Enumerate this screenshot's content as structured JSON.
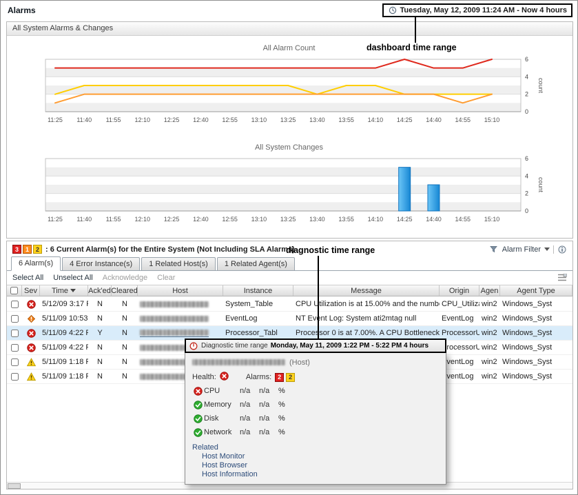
{
  "header": {
    "title": "Alarms",
    "time_range": "Tuesday, May 12, 2009 11:24 AM - Now 4 hours"
  },
  "annotations": {
    "dashboard": "dashboard time range",
    "diagnostic": "diagnostic time range"
  },
  "alarms_panel": {
    "title": "All System Alarms & Changes"
  },
  "chart_data": [
    {
      "type": "line",
      "title": "All Alarm Count",
      "xlabel": "",
      "ylabel": "count",
      "ylim": [
        0,
        6
      ],
      "yticks": [
        0,
        2,
        4,
        6
      ],
      "y_axis_side": "right",
      "grid": true,
      "categories": [
        "11:25",
        "11:40",
        "11:55",
        "12:10",
        "12:25",
        "12:40",
        "12:55",
        "13:10",
        "13:25",
        "13:40",
        "13:55",
        "14:10",
        "14:25",
        "14:40",
        "14:55",
        "15:10"
      ],
      "series": [
        {
          "name": "fatal",
          "color": "#df291d",
          "values": [
            5,
            5,
            5,
            5,
            5,
            5,
            5,
            5,
            5,
            5,
            5,
            5,
            6,
            5,
            5,
            6
          ]
        },
        {
          "name": "warning",
          "color": "#ffce00",
          "values": [
            2,
            3,
            3,
            3,
            3,
            3,
            3,
            3,
            3,
            2,
            3,
            3,
            2,
            2,
            2,
            2
          ]
        },
        {
          "name": "critical",
          "color": "#ff9d33",
          "values": [
            1,
            2,
            2,
            2,
            2,
            2,
            2,
            2,
            2,
            2,
            2,
            2,
            2,
            2,
            1,
            2
          ]
        }
      ]
    },
    {
      "type": "bar",
      "title": "All System Changes",
      "xlabel": "",
      "ylabel": "count",
      "ylim": [
        0,
        6
      ],
      "yticks": [
        0,
        2,
        4,
        6
      ],
      "y_axis_side": "right",
      "grid": true,
      "bar_color": "#2aa6ef",
      "categories": [
        "11:25",
        "11:40",
        "11:55",
        "12:10",
        "12:25",
        "12:40",
        "12:55",
        "13:10",
        "13:25",
        "13:40",
        "13:55",
        "14:10",
        "14:25",
        "14:40",
        "14:55",
        "15:10"
      ],
      "values": [
        0,
        0,
        0,
        0,
        0,
        0,
        0,
        0,
        0,
        0,
        0,
        0,
        5,
        3,
        0,
        0
      ]
    }
  ],
  "alarm_summary": {
    "badges": [
      {
        "count": "3",
        "type": "fatal"
      },
      {
        "count": "1",
        "type": "critical"
      },
      {
        "count": "2",
        "type": "warning"
      }
    ],
    "text": ": 6 Current Alarm(s) for the Entire System (Not Including SLA Alarms)",
    "filter": {
      "label": "Alarm Filter"
    }
  },
  "tabs": [
    {
      "label": "6 Alarm(s)",
      "active": true
    },
    {
      "label": "4 Error Instance(s)",
      "active": false
    },
    {
      "label": "1 Related Host(s)",
      "active": false
    },
    {
      "label": "1 Related Agent(s)",
      "active": false
    }
  ],
  "toolbar": {
    "actions": [
      {
        "label": "Select All",
        "enabled": true
      },
      {
        "label": "Unselect All",
        "enabled": true
      },
      {
        "label": "Acknowledge",
        "enabled": false
      },
      {
        "label": "Clear",
        "enabled": false
      }
    ]
  },
  "alarm_table": {
    "columns": [
      "Sev",
      "Time",
      "Ack'ed",
      "Cleared",
      "Host",
      "Instance",
      "Message",
      "Origin",
      "Agen",
      "Agent Type"
    ],
    "sort_column": "Time",
    "rows": [
      {
        "severity": "fatal",
        "time": "5/12/09 3:17 P",
        "acked": "N",
        "cleared": "N",
        "host_redacted": true,
        "instance": "System_Table",
        "message": "CPU Utilization is at 15.00% and the numbe",
        "origin": "CPU_Utilization",
        "agent": "win2",
        "agent_type": "Windows_Syst",
        "selected": false
      },
      {
        "severity": "critical",
        "time": "5/11/09 10:53",
        "acked": "N",
        "cleared": "N",
        "host_redacted": true,
        "instance": "EventLog",
        "message": "NT Event Log: System ati2mtag null",
        "origin": "EventLog",
        "agent": "win2",
        "agent_type": "Windows_Syst",
        "selected": false
      },
      {
        "severity": "fatal",
        "time": "5/11/09 4:22 P",
        "acked": "Y",
        "cleared": "N",
        "host_redacted": true,
        "host_underlined": true,
        "instance": "Processor_Tabl",
        "message": "Processor 0 is at 7.00%. A CPU Bottleneck i",
        "origin": "ProcessorUtiliza",
        "agent": "win2",
        "agent_type": "Windows_Syst",
        "selected": true
      },
      {
        "severity": "fatal",
        "time": "5/11/09 4:22 P",
        "acked": "N",
        "cleared": "N",
        "host_redacted": true,
        "instance": "",
        "message": "",
        "origin": "ProcessorUtiliza",
        "agent": "win2",
        "agent_type": "Windows_Syst",
        "selected": false
      },
      {
        "severity": "warning",
        "time": "5/11/09 1:18 P",
        "acked": "N",
        "cleared": "N",
        "host_redacted": true,
        "instance": "",
        "message": "",
        "origin": "EventLog",
        "agent": "win2",
        "agent_type": "Windows_Syst",
        "selected": false
      },
      {
        "severity": "warning",
        "time": "5/11/09 1:18 P",
        "acked": "N",
        "cleared": "N",
        "host_redacted": true,
        "instance": "",
        "message": "",
        "origin": "EventLog",
        "agent": "win2",
        "agent_type": "Windows_Syst",
        "selected": false
      }
    ]
  },
  "diagnostic_popup": {
    "title_prefix": "Diagnostic time range",
    "title_range": "Monday, May 11, 2009  1:22 PM - 5:22 PM  4 hours",
    "host_redacted": true,
    "host_type_label": "(Host)",
    "health_label": "Health:",
    "health_status": "fatal",
    "alarms_label": "Alarms:",
    "alarm_badges": [
      {
        "count": "2",
        "type": "fatal"
      },
      {
        "count": "2",
        "type": "warning"
      }
    ],
    "metrics": [
      {
        "status": "fatal",
        "label": "CPU",
        "value1": "n/a",
        "value2": "n/a",
        "unit": "%"
      },
      {
        "status": "normal",
        "label": "Memory",
        "value1": "n/a",
        "value2": "n/a",
        "unit": "%"
      },
      {
        "status": "normal",
        "label": "Disk",
        "value1": "n/a",
        "value2": "n/a",
        "unit": "%"
      },
      {
        "status": "normal",
        "label": "Network",
        "value1": "n/a",
        "value2": "n/a",
        "unit": "%"
      }
    ],
    "related_label": "Related",
    "related_links": [
      "Host Monitor",
      "Host Browser",
      "Host Information"
    ]
  }
}
